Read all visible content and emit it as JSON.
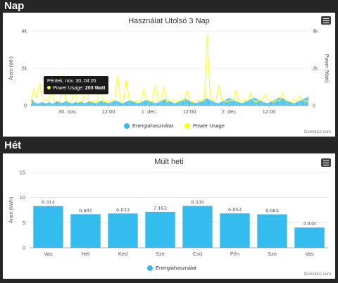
{
  "sections": {
    "nap": "Nap",
    "het": "Hét"
  },
  "credit": "Domoticz.com",
  "colors": {
    "energy": "#35bcef",
    "power": "#ffff22"
  },
  "day_chart": {
    "title": "Használat Utolsó 3 Nap",
    "left_axis_label": "Áram (Wh)",
    "right_axis_label": "Power (Watt)",
    "y_ticks_left": [
      "0",
      "2k",
      "4k"
    ],
    "y_ticks_right": [
      "0",
      "2k",
      "4k"
    ],
    "x_ticks": [
      "30. nov.",
      "12:00",
      "1. dec.",
      "12:00",
      "2. dec.",
      "12:00"
    ],
    "legend": {
      "energy": "Energiahasználat",
      "power": "Power Usage"
    },
    "tooltip": {
      "time": "Péntek, nov. 30, 04:05",
      "series": "Power Usage:",
      "value": "203 Watt"
    }
  },
  "chart_data": [
    {
      "type": "bar",
      "title": "Használat Utolsó 3 Nap",
      "ylabel": "Áram (Wh)",
      "y2label": "Power (Watt)",
      "ylim": [
        0,
        4000
      ],
      "legend": "bottom-center",
      "series": [
        {
          "name": "Energiahasználat",
          "type": "bar",
          "values": [
            100,
            350,
            300,
            250,
            180,
            160,
            140,
            120,
            100,
            110,
            130,
            150,
            160,
            180,
            200,
            170,
            150,
            140,
            130,
            120,
            140,
            160,
            180,
            200,
            150,
            130,
            110,
            120,
            140,
            160,
            180,
            200,
            220,
            250,
            230,
            200,
            180,
            160,
            150,
            140,
            160,
            180,
            200,
            220,
            240,
            220,
            200,
            180,
            160,
            150,
            140,
            130,
            120,
            140,
            160,
            180,
            200,
            180,
            160,
            150,
            170,
            190,
            210,
            200,
            180,
            160,
            150,
            140,
            130,
            150,
            170,
            190,
            210,
            230,
            250,
            230,
            210,
            190,
            170,
            160,
            150,
            140,
            130,
            150,
            170,
            190,
            210,
            230,
            250,
            270,
            250,
            230,
            210,
            190,
            170,
            160,
            150,
            140,
            130,
            150,
            170,
            190,
            210,
            230,
            250,
            270,
            290,
            270,
            250,
            230,
            210,
            190,
            170,
            160,
            150,
            140,
            130,
            150,
            170,
            190,
            210,
            230,
            250,
            270,
            290,
            310,
            290,
            270,
            250,
            230,
            210,
            190,
            170,
            160,
            150,
            140,
            130,
            150,
            170,
            190,
            210,
            230,
            250,
            270,
            290,
            310,
            330,
            310,
            290,
            270,
            250,
            230,
            210,
            190,
            170,
            160,
            150,
            140,
            130,
            150,
            170,
            190,
            210,
            230,
            250,
            270,
            290,
            310,
            330,
            350,
            330,
            310,
            290,
            270,
            250,
            230,
            210,
            190,
            170,
            160,
            150,
            140,
            130,
            150,
            170,
            190,
            210,
            230,
            250,
            270,
            290,
            310,
            330,
            350,
            370,
            350,
            330,
            310,
            290,
            270,
            250,
            230,
            210,
            190,
            170,
            160,
            150,
            140,
            130,
            150,
            170,
            190,
            210,
            230,
            250,
            270,
            290,
            310,
            330,
            350,
            370,
            390,
            370,
            350,
            330,
            310,
            290,
            270,
            250,
            230,
            210,
            190,
            170,
            160,
            150,
            140,
            130,
            150,
            170,
            190,
            210,
            230,
            250,
            270,
            290,
            310,
            330,
            350,
            370,
            390,
            410,
            390,
            370,
            350,
            330,
            310,
            290,
            270,
            250,
            230,
            210,
            190,
            170,
            160,
            150,
            140,
            130,
            150,
            170,
            190,
            210,
            230,
            250,
            270,
            290,
            310,
            330,
            350,
            370,
            390,
            410,
            430,
            410,
            390,
            370,
            350,
            330,
            310,
            290,
            270,
            250,
            230,
            210,
            190,
            170,
            160,
            150,
            140,
            130,
            150,
            170,
            190,
            210,
            230,
            250,
            270,
            290,
            310,
            330,
            350,
            370,
            390,
            410,
            430,
            450,
            430,
            410,
            390,
            370,
            350,
            330,
            310,
            290,
            270,
            250,
            230,
            210,
            190,
            170,
            160,
            150,
            140,
            130,
            150,
            170,
            190,
            210,
            230,
            250,
            270,
            290,
            310,
            330,
            350,
            370,
            390,
            410,
            430,
            450,
            470
          ]
        },
        {
          "name": "Power Usage",
          "type": "line",
          "values": [
            200,
            900,
            400,
            1200,
            350,
            300,
            250,
            800,
            300,
            250,
            200,
            1700,
            300,
            250,
            200,
            1100,
            250,
            200,
            300,
            1500,
            250,
            200,
            250,
            200,
            1300,
            200,
            250,
            200,
            300,
            250,
            1600,
            250,
            200,
            1400,
            300,
            250,
            200,
            250,
            200,
            900,
            300,
            250,
            200,
            1100,
            300,
            250,
            1000,
            200,
            250,
            300,
            250,
            200,
            300,
            250,
            800,
            250,
            200,
            250,
            300,
            200,
            300,
            3800,
            400,
            250,
            300,
            1100,
            300,
            250,
            200,
            300,
            250,
            800,
            200,
            250,
            300,
            250,
            700,
            250,
            200,
            300,
            250,
            600,
            300,
            250,
            200,
            300,
            250,
            700,
            300,
            250,
            200,
            300,
            250,
            500,
            300,
            250,
            200
          ]
        }
      ]
    },
    {
      "type": "bar",
      "title": "Múlt heti",
      "ylabel": "Áram (kWh)",
      "ylim": [
        0,
        15
      ],
      "yticks": [
        0,
        5,
        10,
        15
      ],
      "categories": [
        "Vas",
        "Hét",
        "Ked",
        "Sze",
        "Csü",
        "Pén",
        "Szo",
        "Vas"
      ],
      "legend": "bottom-center",
      "series": [
        {
          "name": "Energiahasználat",
          "values": [
            8.314,
            6.691,
            6.833,
            7.163,
            8.336,
            6.853,
            6.663,
            4.038
          ],
          "labels": [
            "8.314",
            "6.691",
            "6.833",
            "7.163",
            "8.336",
            "6.853",
            "6.663",
            "4.038"
          ]
        }
      ]
    }
  ],
  "week_chart": {
    "title": "Múlt heti",
    "y_axis_label": "Áram (kWh)",
    "y_ticks": [
      "0",
      "5",
      "10",
      "15"
    ],
    "legend": {
      "energy": "Energiahasználat"
    }
  }
}
